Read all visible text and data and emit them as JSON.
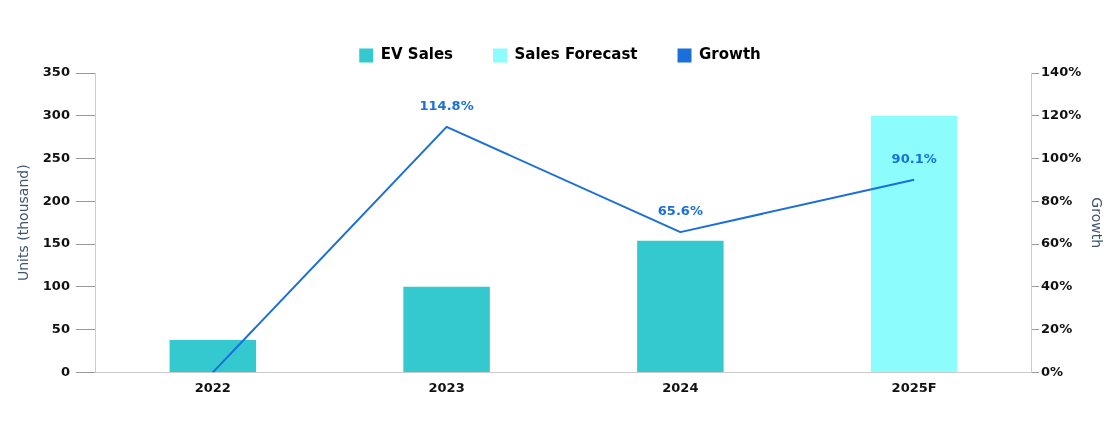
{
  "chart_data": {
    "type": "bar",
    "categories": [
      "2022",
      "2023",
      "2024",
      "2025F"
    ],
    "ylabel": "Units (thousand)",
    "y2label": "Growth",
    "ylim": [
      0,
      350
    ],
    "yticks": [
      0,
      50,
      100,
      150,
      200,
      250,
      300,
      350
    ],
    "y2lim": [
      0,
      140
    ],
    "y2ticks": [
      {
        "value": 0,
        "label": "0%"
      },
      {
        "value": 20,
        "label": "20%"
      },
      {
        "value": 40,
        "label": "40%"
      },
      {
        "value": 60,
        "label": "60%"
      },
      {
        "value": 80,
        "label": "80%"
      },
      {
        "value": 100,
        "label": "100%"
      },
      {
        "value": 120,
        "label": "120%"
      },
      {
        "value": 140,
        "label": "140%"
      }
    ],
    "stacked": true,
    "grid": false,
    "legend": "top",
    "marker": "none",
    "series": [
      {
        "name": "EV Sales",
        "color": "#33c9cf",
        "values": [
          38,
          100,
          154,
          null
        ]
      },
      {
        "name": "Sales Forecast",
        "color": "#8cfcfc",
        "values": [
          null,
          null,
          null,
          300
        ]
      },
      {
        "name": "Growth",
        "type": "line",
        "axis": "y2",
        "color": "#1a6fd9",
        "values": [
          0,
          114.8,
          65.6,
          90.1
        ],
        "value_labels": [
          null,
          "114.8%",
          "65.6%",
          "90.1%"
        ]
      }
    ]
  }
}
